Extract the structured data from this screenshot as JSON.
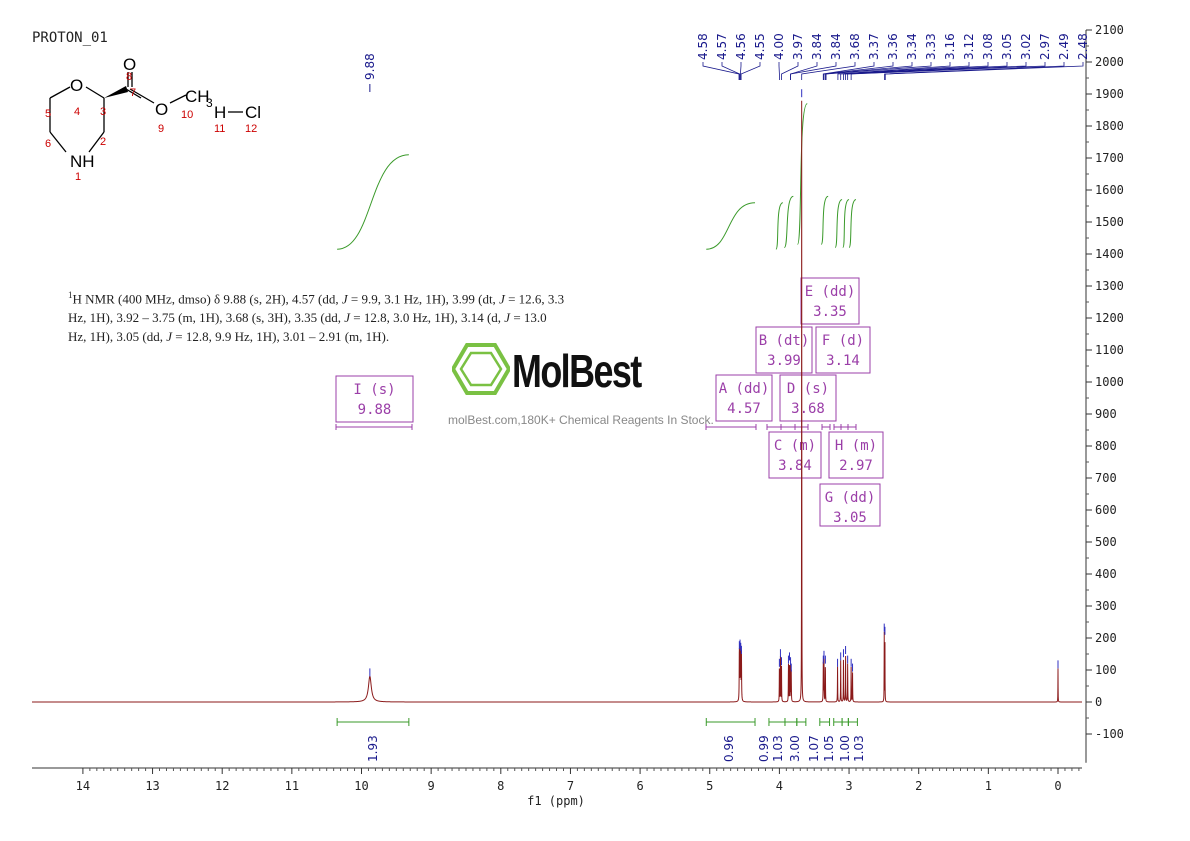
{
  "experiment_title": "PROTON_01",
  "structure_labels": {
    "O4": "O",
    "O8": "O",
    "O9": "O",
    "CH3": "CH",
    "CH3_sub": "3",
    "NH": "NH",
    "H11": "H",
    "Cl12": "Cl",
    "numbers": [
      "1",
      "2",
      "3",
      "4",
      "5",
      "6",
      "7",
      "8",
      "9",
      "10",
      "11",
      "12"
    ]
  },
  "nmr_description": {
    "line1_pre": "H NMR (400 MHz, dmso) δ 9.88 (s, 2H), 4.57 (dd, ",
    "sup": "1",
    "j": "J",
    "line1_a": " = 9.9, 3.1 Hz, 1H), 3.99 (dt, ",
    "line1_b": " = 12.6, 3.3",
    "line2_pre": "Hz, 1H), 3.92 – 3.75 (m, 1H), 3.68 (s, 3H), 3.35 (dd, ",
    "line2_a": " = 12.8, 3.0 Hz, 1H), 3.14 (d, ",
    "line2_b": " = 13.0",
    "line3_pre": "Hz, 1H), 3.05 (dd, ",
    "line3_a": " = 12.8, 9.9 Hz, 1H), 3.01 – 2.91 (m, 1H)."
  },
  "watermark": {
    "brand": "MolBest",
    "tagline": "molBest.com,180K+ Chemical Reagents In Stock."
  },
  "chart_data": {
    "type": "line",
    "title": "PROTON_01",
    "xlabel": "f1 (ppm)",
    "ylabel": "",
    "x_reversed": true,
    "xlim": [
      14.8,
      -0.35
    ],
    "ylim": [
      -190,
      2100
    ],
    "x_ticks": [
      14,
      13,
      12,
      11,
      10,
      9,
      8,
      7,
      6,
      5,
      4,
      3,
      2,
      1,
      0
    ],
    "y_ticks": [
      -100,
      0,
      100,
      200,
      300,
      400,
      500,
      600,
      700,
      800,
      900,
      1000,
      1100,
      1200,
      1300,
      1400,
      1500,
      1600,
      1700,
      1800,
      1900,
      2000,
      2100
    ],
    "series_color": "#8b1a1a",
    "integral_color": "#3a9a2a",
    "peak_label_color": "#1a1a8c",
    "multiplet_color": "#9b3fa8",
    "peaks": [
      {
        "ppm": 9.88,
        "height": 80,
        "width": 0.05
      },
      {
        "ppm": 4.575,
        "height": 165,
        "width": 0.005
      },
      {
        "ppm": 4.565,
        "height": 170,
        "width": 0.005
      },
      {
        "ppm": 4.555,
        "height": 160,
        "width": 0.005
      },
      {
        "ppm": 4.545,
        "height": 150,
        "width": 0.005
      },
      {
        "ppm": 4.0,
        "height": 110,
        "width": 0.004
      },
      {
        "ppm": 3.985,
        "height": 140,
        "width": 0.004
      },
      {
        "ppm": 3.97,
        "height": 115,
        "width": 0.004
      },
      {
        "ppm": 3.87,
        "height": 120,
        "width": 0.004
      },
      {
        "ppm": 3.855,
        "height": 130,
        "width": 0.004
      },
      {
        "ppm": 3.84,
        "height": 115,
        "width": 0.004
      },
      {
        "ppm": 3.83,
        "height": 95,
        "width": 0.004
      },
      {
        "ppm": 3.68,
        "height": 1890,
        "width": 0.003
      },
      {
        "ppm": 3.37,
        "height": 120,
        "width": 0.004
      },
      {
        "ppm": 3.36,
        "height": 135,
        "width": 0.004
      },
      {
        "ppm": 3.34,
        "height": 120,
        "width": 0.004
      },
      {
        "ppm": 3.165,
        "height": 110,
        "width": 0.004
      },
      {
        "ppm": 3.12,
        "height": 130,
        "width": 0.004
      },
      {
        "ppm": 3.08,
        "height": 140,
        "width": 0.004
      },
      {
        "ppm": 3.05,
        "height": 150,
        "width": 0.004
      },
      {
        "ppm": 3.02,
        "height": 120,
        "width": 0.004
      },
      {
        "ppm": 2.97,
        "height": 110,
        "width": 0.004
      },
      {
        "ppm": 2.95,
        "height": 95,
        "width": 0.004
      },
      {
        "ppm": 2.495,
        "height": 220,
        "width": 0.003
      },
      {
        "ppm": 2.485,
        "height": 210,
        "width": 0.003
      },
      {
        "ppm": 0.0,
        "height": 105,
        "width": 0.003
      }
    ],
    "peak_labels_left": [
      "9.88"
    ],
    "peak_labels_right": [
      "4.58",
      "4.57",
      "4.56",
      "4.55",
      "4.00",
      "3.97",
      "3.84",
      "3.84",
      "3.68",
      "3.37",
      "3.36",
      "3.34",
      "3.33",
      "3.16",
      "3.12",
      "3.08",
      "3.05",
      "3.02",
      "2.97",
      "2.49",
      "2.48"
    ],
    "peak_label_ppm": [
      4.58,
      4.57,
      4.56,
      4.55,
      4.0,
      3.97,
      3.84,
      3.84,
      3.68,
      3.37,
      3.36,
      3.34,
      3.33,
      3.16,
      3.12,
      3.08,
      3.05,
      3.02,
      2.97,
      2.49,
      2.48
    ],
    "integrals": [
      {
        "from": 10.35,
        "to": 9.32,
        "value": "1.93"
      },
      {
        "from": 5.05,
        "to": 4.35,
        "value": "0.96"
      },
      {
        "from": 4.15,
        "to": 3.92,
        "value": "0.99"
      },
      {
        "from": 3.92,
        "to": 3.75,
        "value": "1.03"
      },
      {
        "from": 3.75,
        "to": 3.62,
        "value": "3.00"
      },
      {
        "from": 3.42,
        "to": 3.28,
        "value": "1.07"
      },
      {
        "from": 3.22,
        "to": 3.1,
        "value": "1.05"
      },
      {
        "from": 3.1,
        "to": 3.01,
        "value": "1.00"
      },
      {
        "from": 3.01,
        "to": 2.88,
        "value": "1.03"
      }
    ],
    "multiplets": [
      {
        "letter": "I",
        "mult": "s",
        "shift": "9.88"
      },
      {
        "letter": "A",
        "mult": "dd",
        "shift": "4.57"
      },
      {
        "letter": "B",
        "mult": "dt",
        "shift": "3.99"
      },
      {
        "letter": "C",
        "mult": "m",
        "shift": "3.84"
      },
      {
        "letter": "D",
        "mult": "s",
        "shift": "3.68"
      },
      {
        "letter": "E",
        "mult": "dd",
        "shift": "3.35"
      },
      {
        "letter": "F",
        "mult": "d",
        "shift": "3.14"
      },
      {
        "letter": "G",
        "mult": "dd",
        "shift": "3.05"
      },
      {
        "letter": "H",
        "mult": "m",
        "shift": "2.97"
      }
    ]
  }
}
